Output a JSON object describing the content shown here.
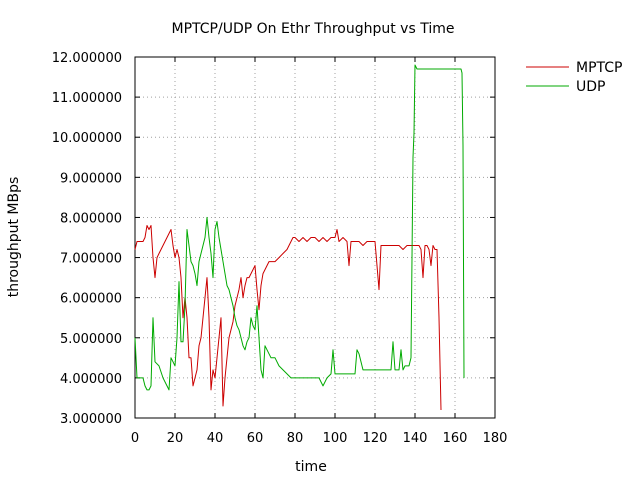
{
  "chart_data": {
    "type": "line",
    "title": "MPTCP/UDP On Ethr Throughput vs Time",
    "xlabel": "time",
    "ylabel": "throughput MBps",
    "xlim": [
      0,
      180
    ],
    "ylim": [
      3,
      12
    ],
    "x_ticks": [
      0,
      20,
      40,
      60,
      80,
      100,
      120,
      140,
      160,
      180
    ],
    "x_tick_labels": [
      "0",
      "20",
      "40",
      "60",
      "80",
      "100",
      "120",
      "140",
      "160",
      "180"
    ],
    "y_ticks": [
      3,
      4,
      5,
      6,
      7,
      8,
      9,
      10,
      11,
      12
    ],
    "y_tick_labels": [
      "3.000000",
      "4.000000",
      "5.000000",
      "6.000000",
      "7.000000",
      "8.000000",
      "9.000000",
      "10.000000",
      "11.000000",
      "12.000000"
    ],
    "grid": true,
    "legend_position": "outside-top-right",
    "series": [
      {
        "name": "MPTCP",
        "color": "#cc0000",
        "x": [
          0,
          1,
          2,
          3,
          4,
          5,
          6,
          7,
          8,
          9,
          10,
          11,
          12,
          14,
          16,
          18,
          19,
          20,
          21,
          22,
          23,
          24,
          25,
          26,
          27,
          28,
          29,
          30,
          31,
          32,
          33,
          34,
          35,
          36,
          37,
          38,
          39,
          40,
          41,
          42,
          43,
          44,
          45,
          46,
          47,
          48,
          49,
          50,
          51,
          52,
          53,
          54,
          55,
          56,
          57,
          58,
          59,
          60,
          61,
          62,
          63,
          64,
          65,
          66,
          67,
          68,
          70,
          72,
          74,
          76,
          78,
          79,
          80,
          82,
          84,
          86,
          88,
          90,
          92,
          94,
          96,
          98,
          100,
          101,
          102,
          104,
          106,
          107,
          108,
          110,
          112,
          114,
          116,
          118,
          120,
          121,
          122,
          123,
          124,
          126,
          128,
          130,
          132,
          134,
          136,
          138,
          140,
          141,
          142,
          143,
          144,
          145,
          146,
          147,
          148,
          149,
          150,
          151,
          152,
          153
        ],
        "values": [
          7.2,
          7.4,
          7.4,
          7.4,
          7.4,
          7.5,
          7.8,
          7.7,
          7.8,
          7.0,
          6.5,
          7.0,
          7.1,
          7.3,
          7.5,
          7.7,
          7.3,
          7.0,
          7.2,
          7.0,
          6.5,
          5.5,
          6.0,
          5.5,
          4.5,
          4.5,
          3.8,
          4.0,
          4.2,
          4.8,
          5.0,
          5.5,
          6.0,
          6.5,
          5.5,
          3.7,
          4.2,
          4.0,
          4.5,
          5.0,
          5.5,
          3.3,
          4.0,
          4.5,
          5.0,
          5.2,
          5.4,
          5.8,
          6.0,
          6.2,
          6.5,
          6.0,
          6.3,
          6.5,
          6.5,
          6.6,
          6.7,
          6.8,
          6.2,
          5.7,
          6.3,
          6.6,
          6.7,
          6.8,
          6.9,
          6.9,
          6.9,
          7.0,
          7.1,
          7.2,
          7.4,
          7.5,
          7.5,
          7.4,
          7.5,
          7.4,
          7.5,
          7.5,
          7.4,
          7.5,
          7.4,
          7.5,
          7.5,
          7.7,
          7.4,
          7.5,
          7.4,
          6.8,
          7.4,
          7.4,
          7.4,
          7.3,
          7.4,
          7.4,
          7.4,
          6.8,
          6.2,
          7.3,
          7.3,
          7.3,
          7.3,
          7.3,
          7.3,
          7.2,
          7.3,
          7.3,
          7.3,
          7.3,
          7.3,
          7.2,
          6.5,
          7.3,
          7.3,
          7.2,
          6.8,
          7.3,
          7.2,
          7.2,
          5.5,
          3.2
        ]
      },
      {
        "name": "UDP",
        "color": "#00aa00",
        "x": [
          0,
          1,
          2,
          3,
          4,
          5,
          6,
          7,
          8,
          9,
          10,
          12,
          14,
          16,
          17,
          18,
          19,
          20,
          21,
          22,
          23,
          24,
          25,
          26,
          27,
          28,
          29,
          30,
          31,
          32,
          33,
          34,
          35,
          36,
          37,
          38,
          39,
          40,
          41,
          42,
          43,
          44,
          45,
          46,
          47,
          48,
          49,
          50,
          51,
          52,
          53,
          54,
          55,
          56,
          57,
          58,
          59,
          60,
          61,
          62,
          63,
          64,
          65,
          66,
          67,
          68,
          70,
          72,
          74,
          76,
          78,
          80,
          84,
          88,
          92,
          94,
          96,
          98,
          99,
          100,
          104,
          108,
          110,
          111,
          112,
          114,
          120,
          124,
          126,
          128,
          129,
          130,
          132,
          133,
          134,
          135,
          136,
          137,
          138,
          139,
          139.5,
          140,
          141,
          142,
          150,
          160,
          163,
          163.5,
          164,
          164.5
        ],
        "values": [
          5.0,
          4.0,
          4.0,
          4.0,
          4.0,
          3.8,
          3.7,
          3.7,
          3.8,
          5.5,
          4.4,
          4.3,
          4.0,
          3.8,
          3.7,
          4.5,
          4.4,
          4.3,
          5.0,
          6.4,
          4.9,
          4.9,
          5.8,
          7.7,
          7.3,
          6.9,
          6.8,
          6.6,
          6.3,
          6.9,
          7.1,
          7.3,
          7.5,
          8.0,
          7.5,
          7.1,
          6.5,
          7.7,
          7.9,
          7.5,
          7.2,
          6.9,
          6.6,
          6.3,
          6.2,
          6.0,
          5.8,
          5.5,
          5.3,
          5.2,
          5.0,
          4.8,
          4.7,
          4.9,
          5.0,
          5.5,
          5.3,
          5.2,
          5.8,
          5.0,
          4.2,
          4.0,
          4.8,
          4.7,
          4.6,
          4.5,
          4.5,
          4.3,
          4.2,
          4.1,
          4.0,
          4.0,
          4.0,
          4.0,
          4.0,
          3.8,
          4.0,
          4.1,
          4.7,
          4.1,
          4.1,
          4.1,
          4.1,
          4.7,
          4.6,
          4.2,
          4.2,
          4.2,
          4.2,
          4.2,
          4.9,
          4.2,
          4.2,
          4.7,
          4.2,
          4.3,
          4.3,
          4.3,
          4.5,
          9.5,
          10.1,
          11.8,
          11.7,
          11.7,
          11.7,
          11.7,
          11.7,
          11.6,
          9.8,
          4.0
        ]
      }
    ]
  }
}
